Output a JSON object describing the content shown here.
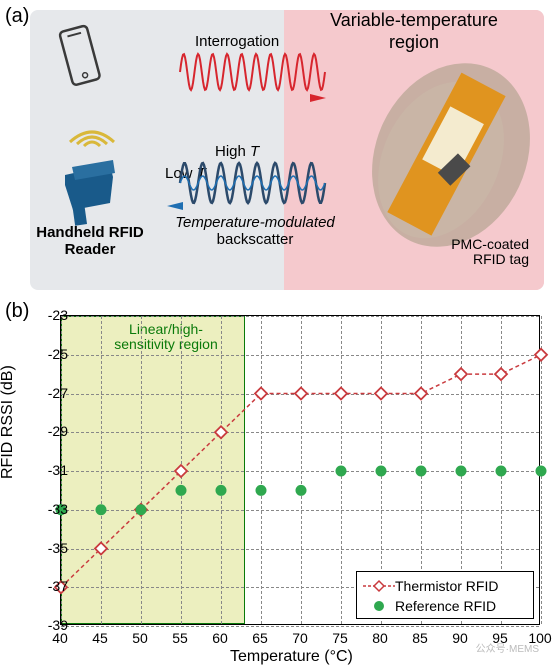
{
  "panel_a": {
    "label": "(a)",
    "variable_temp_label": "Variable-temperature region",
    "reader_label": "Handheld RFID Reader",
    "interrogation_label": "Interrogation",
    "high_t_label": "High",
    "high_t_italic": "T",
    "low_t_label": "Low",
    "low_t_italic": "T",
    "backscatter_italic": "Temperature-modulated",
    "backscatter_label": "backscatter",
    "pmc_label": "PMC-coated RFID tag",
    "colors": {
      "bg_left": "#e6e8eb",
      "bg_right": "#f5c9cd",
      "wave_red": "#d7262e",
      "wave_blue": "#1f6fb2",
      "wave_dark": "#2c4a6b",
      "reader_blue": "#195a8a",
      "phone": "#3a3a3a",
      "wifi": "#d9b83a",
      "blob": "#b8a694",
      "tag_orange": "#e0941f",
      "tag_inner": "#f4ebcf",
      "tag_chip": "#4a4a4a"
    }
  },
  "panel_b": {
    "label": "(b)",
    "sensitivity_label": "Linear/high-sensitivity region",
    "ylabel": "RFID RSSI (dB)",
    "xlabel": "Temperature (°C)",
    "x_ticks": [
      40,
      45,
      50,
      55,
      60,
      65,
      70,
      75,
      80,
      85,
      90,
      95,
      100
    ],
    "y_ticks": [
      -23,
      -25,
      -27,
      -29,
      -31,
      -33,
      -35,
      -37,
      -39
    ],
    "xlim": [
      40,
      100
    ],
    "ylim": [
      -39,
      -23
    ],
    "sensitivity_region_xmax": 63,
    "legend": {
      "thermistor": "Thermistor RFID",
      "reference": "Reference RFID"
    },
    "thermistor": {
      "color": "#c93a3e",
      "marker": "diamond",
      "x": [
        40,
        45,
        50,
        55,
        60,
        65,
        70,
        75,
        80,
        85,
        90,
        95,
        100
      ],
      "y": [
        -37,
        -35,
        -33,
        -31,
        -29,
        -27,
        -27,
        -27,
        -27,
        -27,
        -26,
        -26,
        -25
      ]
    },
    "reference": {
      "color": "#2fa84f",
      "marker": "circle",
      "x": [
        40,
        45,
        50,
        55,
        60,
        65,
        70,
        75,
        80,
        85,
        90,
        95,
        100
      ],
      "y": [
        -33,
        -33,
        -33,
        -32,
        -32,
        -32,
        -32,
        -31,
        -31,
        -31,
        -31,
        -31,
        -31
      ]
    },
    "colors": {
      "grid": "#888888",
      "region_fill": "rgba(217,224,128,0.5)",
      "region_border": "#0a7a0a"
    }
  },
  "watermark": "公众号·MEMS"
}
